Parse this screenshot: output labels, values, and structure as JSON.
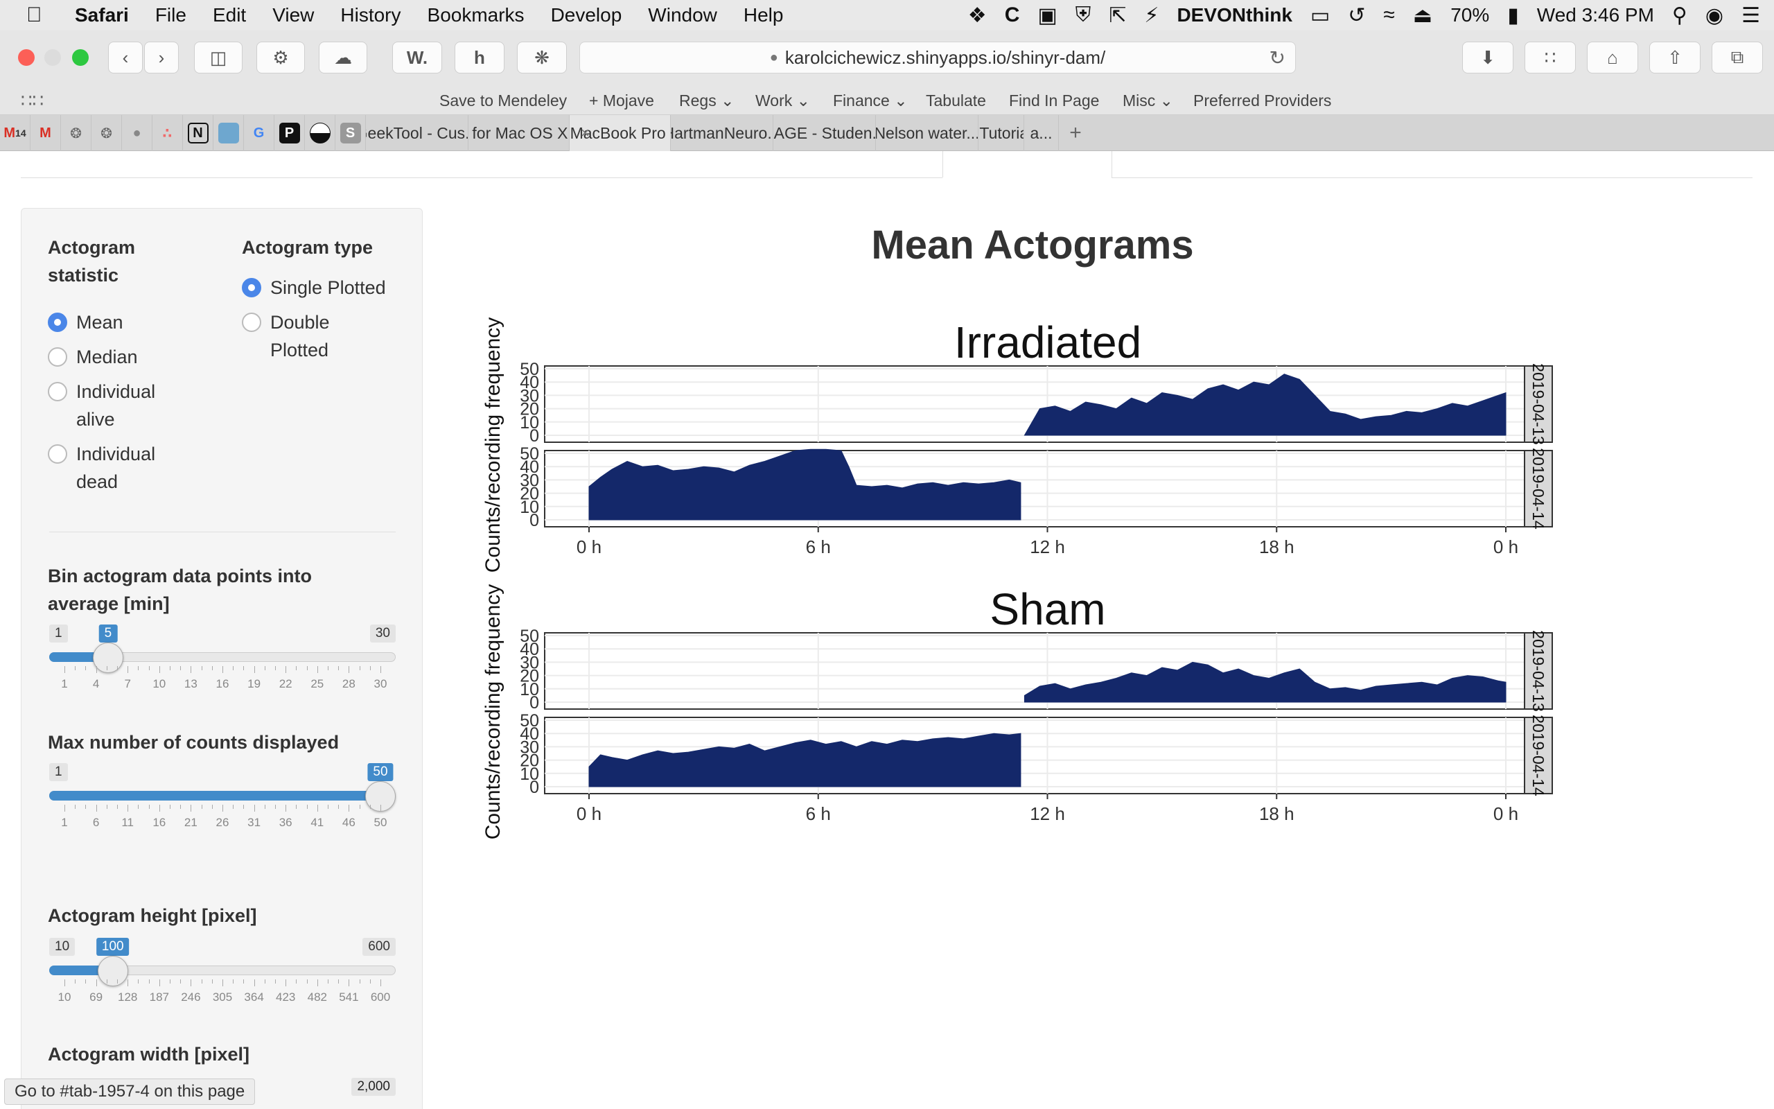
{
  "menubar": {
    "app": "Safari",
    "items": [
      "File",
      "Edit",
      "View",
      "History",
      "Bookmarks",
      "Develop",
      "Window",
      "Help"
    ],
    "status_app": "DEVONthink",
    "battery": "70%",
    "clock": "Wed 3:46 PM"
  },
  "toolbar": {
    "url": "karolcichewicz.shinyapps.io/shinyr-dam/",
    "w_button": "W."
  },
  "bookmarks": [
    "Save to Mendeley",
    "+ Mojave",
    "Regs",
    "Work",
    "Finance",
    "Tabulate",
    "Find In Page",
    "Misc",
    "Preferred Providers"
  ],
  "pinned_tabs": {
    "gmail_count": "14",
    "notion_letter": "N",
    "p_letter": "P",
    "s_letter": "S"
  },
  "tabs": [
    {
      "label": "GeekTool - Cus...",
      "active": false
    },
    {
      "label": "R for Mac OS X...",
      "active": false
    },
    {
      "label": "MacBook Pro \"...",
      "active": true
    },
    {
      "label": "HartmanNeuro...",
      "active": false
    },
    {
      "label": "SAGE - Studen...",
      "active": false
    },
    {
      "label": "Nelson water...",
      "active": false
    },
    {
      "label": "- Tutorial",
      "active": false
    },
    {
      "label": "a...",
      "active": false
    }
  ],
  "sidebar": {
    "statistic_label_1": "Actogram",
    "statistic_label_2": "statistic",
    "statistic_options": [
      "Mean",
      "Median",
      "Individual",
      "alive",
      "Individual",
      "dead"
    ],
    "statistic_selected": "Mean",
    "type_label": "Actogram type",
    "type_options": [
      "Single Plotted",
      "Double",
      "Plotted"
    ],
    "type_selected": "Single Plotted",
    "bin_label_1": "Bin actogram data points into",
    "bin_label_2": "average [min]",
    "bin": {
      "min": "1",
      "max": "30",
      "value": "5",
      "ticks": [
        "1",
        "4",
        "7",
        "10",
        "13",
        "16",
        "19",
        "22",
        "25",
        "28",
        "30"
      ],
      "fraction": 0.138
    },
    "maxcount_label": "Max number of counts displayed",
    "maxcount": {
      "min": "1",
      "max": "50",
      "value": "50",
      "ticks": [
        "1",
        "6",
        "11",
        "16",
        "21",
        "26",
        "31",
        "36",
        "41",
        "46",
        "50"
      ],
      "fraction": 1.0
    },
    "height_label": "Actogram height [pixel]",
    "height": {
      "min": "10",
      "max": "600",
      "value": "100",
      "ticks": [
        "10",
        "69",
        "128",
        "187",
        "246",
        "305",
        "364",
        "423",
        "482",
        "541",
        "600"
      ],
      "fraction": 0.153
    },
    "width_label": "Actogram width [pixel]",
    "width_max": "2,000"
  },
  "tooltip": "Go to #tab-1957-4 on this page",
  "chart_data": {
    "type": "area",
    "title": "Mean Actograms",
    "ylabel": "Counts/recording frequency",
    "x_ticks": [
      "0 h",
      "6 h",
      "12 h",
      "18 h",
      "0 h"
    ],
    "y_ticks": [
      "0",
      "10",
      "20",
      "30",
      "40",
      "50"
    ],
    "ylim": [
      0,
      50
    ],
    "xlim_hours": [
      0,
      24
    ],
    "fill_color": "#14286a",
    "panels": [
      {
        "group": "Irradiated",
        "rows": [
          {
            "strip": "2019-04-13",
            "hours": [
              11.4,
              11.8,
              12.2,
              12.6,
              13.0,
              13.4,
              13.8,
              14.2,
              14.6,
              15.0,
              15.4,
              15.8,
              16.2,
              16.6,
              17.0,
              17.4,
              17.8,
              18.2,
              18.6,
              19.0,
              19.4,
              19.8,
              20.2,
              20.6,
              21.0,
              21.4,
              21.8,
              22.2,
              22.6,
              23.0,
              23.4,
              23.8,
              24.0
            ],
            "values": [
              0,
              20,
              22,
              18,
              25,
              23,
              20,
              28,
              24,
              32,
              30,
              27,
              35,
              38,
              34,
              40,
              38,
              46,
              42,
              30,
              18,
              16,
              12,
              14,
              15,
              18,
              17,
              20,
              24,
              22,
              26,
              30,
              32
            ]
          },
          {
            "strip": "2019-04-14",
            "hours": [
              0.0,
              0.3,
              0.6,
              1.0,
              1.4,
              1.8,
              2.2,
              2.6,
              3.0,
              3.4,
              3.8,
              4.2,
              4.6,
              5.0,
              5.4,
              5.8,
              6.2,
              6.6,
              6.8,
              7.0,
              7.4,
              7.8,
              8.2,
              8.6,
              9.0,
              9.4,
              9.8,
              10.2,
              10.6,
              11.0,
              11.3
            ],
            "values": [
              25,
              32,
              38,
              44,
              40,
              41,
              37,
              38,
              40,
              39,
              36,
              41,
              44,
              48,
              52,
              53,
              53,
              52,
              40,
              26,
              25,
              26,
              24,
              27,
              28,
              26,
              28,
              27,
              28,
              30,
              28
            ]
          }
        ]
      },
      {
        "group": "Sham",
        "rows": [
          {
            "strip": "2019-04-13",
            "hours": [
              11.4,
              11.8,
              12.2,
              12.6,
              13.0,
              13.4,
              13.8,
              14.2,
              14.6,
              15.0,
              15.4,
              15.8,
              16.2,
              16.6,
              17.0,
              17.4,
              17.8,
              18.2,
              18.6,
              19.0,
              19.4,
              19.8,
              20.2,
              20.6,
              21.0,
              21.4,
              21.8,
              22.2,
              22.6,
              23.0,
              23.4,
              23.8,
              24.0
            ],
            "values": [
              5,
              12,
              14,
              10,
              13,
              15,
              18,
              22,
              20,
              26,
              24,
              30,
              28,
              22,
              25,
              20,
              18,
              22,
              25,
              15,
              10,
              11,
              9,
              12,
              13,
              14,
              15,
              13,
              18,
              20,
              19,
              16,
              15
            ]
          },
          {
            "strip": "2019-04-14",
            "hours": [
              0.0,
              0.3,
              0.6,
              1.0,
              1.4,
              1.8,
              2.2,
              2.6,
              3.0,
              3.4,
              3.8,
              4.2,
              4.6,
              5.0,
              5.4,
              5.8,
              6.2,
              6.6,
              7.0,
              7.4,
              7.8,
              8.2,
              8.6,
              9.0,
              9.4,
              9.8,
              10.2,
              10.6,
              11.0,
              11.3
            ],
            "values": [
              15,
              24,
              22,
              20,
              24,
              27,
              25,
              26,
              28,
              30,
              29,
              32,
              27,
              30,
              33,
              35,
              32,
              34,
              30,
              34,
              32,
              35,
              34,
              36,
              37,
              36,
              38,
              40,
              39,
              40
            ]
          }
        ]
      }
    ]
  }
}
